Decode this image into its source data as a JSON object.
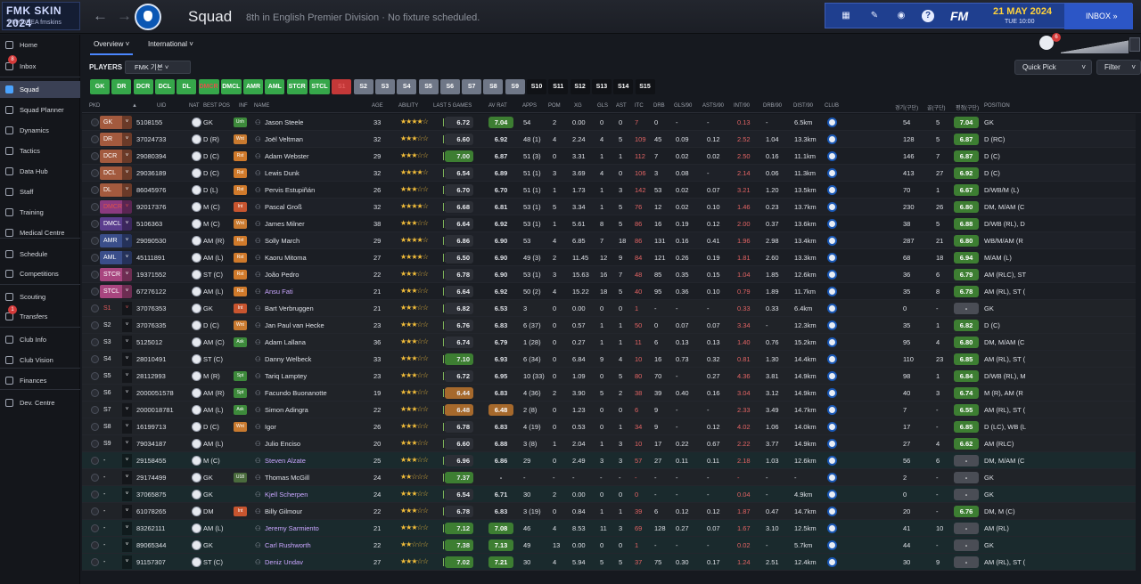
{
  "skin": {
    "title": "FMK SKIN 2024",
    "subtitle": "FMKOREA fmskins"
  },
  "header": {
    "title": "Squad",
    "subtitle": "8th in English Premier Division  ·  No fixture scheduled.",
    "fm": "FM",
    "date": "21 MAY 2024",
    "time": "TUE 10:00",
    "inbox": "INBOX"
  },
  "sidebar": [
    {
      "label": "Home",
      "icon": "home-icon"
    },
    {
      "label": "Inbox",
      "icon": "inbox-icon",
      "badge": "8"
    },
    {
      "label": "Squad",
      "icon": "squad-icon",
      "active": true
    },
    {
      "label": "Squad Planner",
      "icon": "planner-icon"
    },
    {
      "label": "Dynamics",
      "icon": "dynamics-icon"
    },
    {
      "label": "Tactics",
      "icon": "tactics-icon"
    },
    {
      "label": "Data Hub",
      "icon": "datahub-icon"
    },
    {
      "label": "Staff",
      "icon": "staff-icon"
    },
    {
      "label": "Training",
      "icon": "training-icon"
    },
    {
      "label": "Medical Centre",
      "icon": "medical-icon"
    },
    {
      "label": "Schedule",
      "icon": "schedule-icon"
    },
    {
      "label": "Competitions",
      "icon": "trophy-icon"
    },
    {
      "label": "Scouting",
      "icon": "scouting-icon"
    },
    {
      "label": "Transfers",
      "icon": "transfers-icon",
      "badge": "1"
    },
    {
      "label": "Club Info",
      "icon": "clubinfo-icon"
    },
    {
      "label": "Club Vision",
      "icon": "vision-icon"
    },
    {
      "label": "Finances",
      "icon": "finances-icon"
    },
    {
      "label": "Dev. Centre",
      "icon": "devcentre-icon"
    }
  ],
  "tabs": {
    "overview": "Overview",
    "international": "International"
  },
  "badge_count": "6",
  "players_bar": {
    "label": "PLAYERS",
    "view": "FMK 기본",
    "quick_pick": "Quick Pick",
    "filter": "Filter"
  },
  "positions": [
    "GK",
    "DR",
    "DCR",
    "DCL",
    "DL",
    "DMCR",
    "DMCL",
    "AMR",
    "AML",
    "STCR",
    "STCL",
    "S1",
    "S2",
    "S3",
    "S4",
    "S5",
    "S6",
    "S7",
    "S8",
    "S9",
    "S10",
    "S11",
    "S12",
    "S13",
    "S14",
    "S15"
  ],
  "columns": {
    "pkd": "PKD",
    "uid": "UID",
    "nat": "NAT",
    "best": "BEST POS",
    "inf": "INF",
    "name": "NAME",
    "age": "AGE",
    "ability": "ABILITY",
    "last5": "LAST 5 GAMES",
    "avrat": "AV RAT",
    "apps": "APPS",
    "pom": "POM",
    "xg": "XG",
    "gls": "GLS",
    "ast": "AST",
    "itc": "ITC",
    "drb": "DRB",
    "gls90": "GLS/90",
    "asts90": "ASTS/90",
    "int90": "INT/90",
    "drb90": "DRB/90",
    "dist90": "DIST/90",
    "club": "CLUB",
    "games": "경기(구단)",
    "goals": "골(구단)",
    "rating": "평점(구단)",
    "position": "POSITION"
  },
  "rows": [
    {
      "pos": "GK",
      "uid": "5108155",
      "best": "GK",
      "inf": "Unh",
      "name": "Jason Steele",
      "age": "33",
      "stars": "★★★★☆",
      "last5": "6.72",
      "av": "7.04",
      "apps": "54",
      "pom": "2",
      "xg": "0.00",
      "gls": "0",
      "ast": "0",
      "itc": "7",
      "drb": "0",
      "gls90": "-",
      "asts90": "-",
      "int90": "0.13",
      "drb90": "-",
      "dist": "6.5km",
      "cg": "54",
      "cgl": "5",
      "cr": "7.04",
      "cpos": "GK"
    },
    {
      "pos": "DR",
      "uid": "37024733",
      "best": "D (R)",
      "inf": "Wnt",
      "name": "Joël Veltman",
      "age": "32",
      "stars": "★★★☆☆",
      "last5": "6.60",
      "av": "6.92",
      "apps": "48 (1)",
      "pom": "4",
      "xg": "2.24",
      "gls": "4",
      "ast": "5",
      "itc": "109",
      "drb": "45",
      "gls90": "0.09",
      "asts90": "0.12",
      "int90": "2.52",
      "drb90": "1.04",
      "dist": "13.3km",
      "cg": "128",
      "cgl": "5",
      "cr": "6.87",
      "cpos": "D (RC)"
    },
    {
      "pos": "DCR",
      "uid": "29080394",
      "best": "D (C)",
      "inf": "Rst",
      "name": "Adam Webster",
      "age": "29",
      "stars": "★★★☆☆",
      "last5": "7.00",
      "av": "6.87",
      "apps": "51 (3)",
      "pom": "0",
      "xg": "3.31",
      "gls": "1",
      "ast": "1",
      "itc": "112",
      "drb": "7",
      "gls90": "0.02",
      "asts90": "0.02",
      "int90": "2.50",
      "drb90": "0.16",
      "dist": "11.1km",
      "cg": "146",
      "cgl": "7",
      "cr": "6.87",
      "cpos": "D (C)"
    },
    {
      "pos": "DCL",
      "uid": "29036189",
      "best": "D (C)",
      "inf": "Rst",
      "name": "Lewis Dunk",
      "age": "32",
      "stars": "★★★★☆",
      "last5": "6.54",
      "av": "6.89",
      "apps": "51 (1)",
      "pom": "3",
      "xg": "3.69",
      "gls": "4",
      "ast": "0",
      "itc": "106",
      "drb": "3",
      "gls90": "0.08",
      "asts90": "-",
      "int90": "2.14",
      "drb90": "0.06",
      "dist": "11.3km",
      "cg": "413",
      "cgl": "27",
      "cr": "6.92",
      "cpos": "D (C)"
    },
    {
      "pos": "DL",
      "uid": "86045976",
      "best": "D (L)",
      "inf": "Rst",
      "name": "Pervis Estupiñán",
      "age": "26",
      "stars": "★★★☆☆",
      "last5": "6.70",
      "av": "6.70",
      "apps": "51 (1)",
      "pom": "1",
      "xg": "1.73",
      "gls": "1",
      "ast": "3",
      "itc": "142",
      "drb": "53",
      "gls90": "0.02",
      "asts90": "0.07",
      "int90": "3.21",
      "drb90": "1.20",
      "dist": "13.5km",
      "cg": "70",
      "cgl": "1",
      "cr": "6.67",
      "cpos": "D/WB/M (L)"
    },
    {
      "pos": "DMCR",
      "uid": "92017376",
      "best": "M (C)",
      "inf": "Int",
      "name": "Pascal Groß",
      "age": "32",
      "stars": "★★★★☆",
      "last5": "6.68",
      "av": "6.81",
      "apps": "53 (1)",
      "pom": "5",
      "xg": "3.34",
      "gls": "1",
      "ast": "5",
      "itc": "76",
      "drb": "12",
      "gls90": "0.02",
      "asts90": "0.10",
      "int90": "1.46",
      "drb90": "0.23",
      "dist": "13.7km",
      "cg": "230",
      "cgl": "26",
      "cr": "6.80",
      "cpos": "DM, M/AM (C"
    },
    {
      "pos": "DMCL",
      "uid": "5106363",
      "best": "M (C)",
      "inf": "Wnt",
      "name": "James Milner",
      "age": "38",
      "stars": "★★★☆☆",
      "last5": "6.64",
      "av": "6.92",
      "apps": "53 (1)",
      "pom": "1",
      "xg": "5.61",
      "gls": "8",
      "ast": "5",
      "itc": "86",
      "drb": "16",
      "gls90": "0.19",
      "asts90": "0.12",
      "int90": "2.00",
      "drb90": "0.37",
      "dist": "13.6km",
      "cg": "38",
      "cgl": "5",
      "cr": "6.88",
      "cpos": "D/WB (RL), D"
    },
    {
      "pos": "AMR",
      "uid": "29090530",
      "best": "AM (R)",
      "inf": "Rst",
      "name": "Solly March",
      "age": "29",
      "stars": "★★★★☆",
      "last5": "6.86",
      "av": "6.90",
      "apps": "53",
      "pom": "4",
      "xg": "6.85",
      "gls": "7",
      "ast": "18",
      "itc": "86",
      "drb": "131",
      "gls90": "0.16",
      "asts90": "0.41",
      "int90": "1.96",
      "drb90": "2.98",
      "dist": "13.4km",
      "cg": "287",
      "cgl": "21",
      "cr": "6.80",
      "cpos": "WB/M/AM (R"
    },
    {
      "pos": "AML",
      "uid": "45111891",
      "best": "AM (L)",
      "inf": "Rst",
      "name": "Kaoru Mitoma",
      "age": "27",
      "stars": "★★★★☆",
      "last5": "6.50",
      "av": "6.90",
      "apps": "49 (3)",
      "pom": "2",
      "xg": "11.45",
      "gls": "12",
      "ast": "9",
      "itc": "84",
      "drb": "121",
      "gls90": "0.26",
      "asts90": "0.19",
      "int90": "1.81",
      "drb90": "2.60",
      "dist": "13.3km",
      "cg": "68",
      "cgl": "18",
      "cr": "6.94",
      "cpos": "M/AM (L)"
    },
    {
      "pos": "STCR",
      "uid": "19371552",
      "best": "ST (C)",
      "inf": "Rst",
      "name": "João Pedro",
      "age": "22",
      "stars": "★★★☆☆",
      "last5": "6.78",
      "av": "6.90",
      "apps": "53 (1)",
      "pom": "3",
      "xg": "15.63",
      "gls": "16",
      "ast": "7",
      "itc": "48",
      "drb": "85",
      "gls90": "0.35",
      "asts90": "0.15",
      "int90": "1.04",
      "drb90": "1.85",
      "dist": "12.6km",
      "cg": "36",
      "cgl": "6",
      "cr": "6.79",
      "cpos": "AM (RLC), ST"
    },
    {
      "pos": "STCL",
      "uid": "67276122",
      "best": "AM (L)",
      "inf": "Rst",
      "name": "Ansu Fati",
      "age": "21",
      "stars": "★★★☆☆",
      "last5": "6.64",
      "av": "6.92",
      "apps": "50 (2)",
      "pom": "4",
      "xg": "15.22",
      "gls": "18",
      "ast": "5",
      "itc": "40",
      "drb": "95",
      "gls90": "0.36",
      "asts90": "0.10",
      "int90": "0.79",
      "drb90": "1.89",
      "dist": "11.7km",
      "cg": "35",
      "cgl": "8",
      "cr": "6.78",
      "cpos": "AM (RL), ST (",
      "purple": true
    },
    {
      "pos": "S1",
      "uid": "37076353",
      "best": "GK",
      "inf": "Int",
      "name": "Bart Verbruggen",
      "age": "21",
      "stars": "★★★☆☆",
      "last5": "6.82",
      "av": "6.53",
      "apps": "3",
      "pom": "0",
      "xg": "0.00",
      "gls": "0",
      "ast": "0",
      "itc": "1",
      "drb": "-",
      "gls90": "-",
      "asts90": "-",
      "int90": "0.33",
      "drb90": "0.33",
      "dist": "6.4km",
      "cg": "0",
      "cgl": "-",
      "cr": "-",
      "cpos": "GK"
    },
    {
      "pos": "S2",
      "uid": "37076335",
      "best": "D (C)",
      "inf": "Wnt",
      "name": "Jan Paul van Hecke",
      "age": "23",
      "stars": "★★★☆☆",
      "last5": "6.76",
      "av": "6.83",
      "apps": "6 (37)",
      "pom": "0",
      "xg": "0.57",
      "gls": "1",
      "ast": "1",
      "itc": "50",
      "drb": "0",
      "gls90": "0.07",
      "asts90": "0.07",
      "int90": "3.34",
      "drb90": "-",
      "dist": "12.3km",
      "cg": "35",
      "cgl": "1",
      "cr": "6.82",
      "cpos": "D (C)"
    },
    {
      "pos": "S3",
      "uid": "5125012",
      "best": "AM (C)",
      "inf": "Ask",
      "name": "Adam Lallana",
      "age": "36",
      "stars": "★★★☆☆",
      "last5": "6.74",
      "av": "6.79",
      "apps": "1 (28)",
      "pom": "0",
      "xg": "0.27",
      "gls": "1",
      "ast": "1",
      "itc": "11",
      "drb": "6",
      "gls90": "0.13",
      "asts90": "0.13",
      "int90": "1.40",
      "drb90": "0.76",
      "dist": "15.2km",
      "cg": "95",
      "cgl": "4",
      "cr": "6.80",
      "cpos": "DM, M/AM (C"
    },
    {
      "pos": "S4",
      "uid": "28010491",
      "best": "ST (C)",
      "inf": "",
      "name": "Danny Welbeck",
      "age": "33",
      "stars": "★★★☆☆",
      "last5": "7.10",
      "av": "6.93",
      "apps": "6 (34)",
      "pom": "0",
      "xg": "6.84",
      "gls": "9",
      "ast": "4",
      "itc": "10",
      "drb": "16",
      "gls90": "0.73",
      "asts90": "0.32",
      "int90": "0.81",
      "drb90": "1.30",
      "dist": "14.4km",
      "cg": "110",
      "cgl": "23",
      "cr": "6.85",
      "cpos": "AM (RL), ST ("
    },
    {
      "pos": "S5",
      "uid": "28112993",
      "best": "M (R)",
      "inf": "Spt",
      "name": "Tariq Lamptey",
      "age": "23",
      "stars": "★★★☆☆",
      "last5": "6.72",
      "av": "6.95",
      "apps": "10 (33)",
      "pom": "0",
      "xg": "1.09",
      "gls": "0",
      "ast": "5",
      "itc": "80",
      "drb": "70",
      "gls90": "-",
      "asts90": "0.27",
      "int90": "4.36",
      "drb90": "3.81",
      "dist": "14.9km",
      "cg": "98",
      "cgl": "1",
      "cr": "6.84",
      "cpos": "D/WB (RL), M"
    },
    {
      "pos": "S6",
      "uid": "2000051578",
      "best": "AM (R)",
      "inf": "Spt",
      "name": "Facundo Buonanotte",
      "age": "19",
      "stars": "★★★☆☆",
      "last5": "6.44",
      "av": "6.83",
      "apps": "4 (36)",
      "pom": "2",
      "xg": "3.90",
      "gls": "5",
      "ast": "2",
      "itc": "38",
      "drb": "39",
      "gls90": "0.40",
      "asts90": "0.16",
      "int90": "3.04",
      "drb90": "3.12",
      "dist": "14.9km",
      "cg": "40",
      "cgl": "3",
      "cr": "6.74",
      "cpos": "M (R), AM (R"
    },
    {
      "pos": "S7",
      "uid": "2000018781",
      "best": "AM (L)",
      "inf": "Ask",
      "name": "Simon Adingra",
      "age": "22",
      "stars": "★★★☆☆",
      "last5": "6.48",
      "av": "6.48",
      "apps": "2 (8)",
      "pom": "0",
      "xg": "1.23",
      "gls": "0",
      "ast": "0",
      "itc": "6",
      "drb": "9",
      "gls90": "-",
      "asts90": "-",
      "int90": "2.33",
      "drb90": "3.49",
      "dist": "14.7km",
      "cg": "7",
      "cgl": "-",
      "cr": "6.55",
      "cpos": "AM (RL), ST ("
    },
    {
      "pos": "S8",
      "uid": "16199713",
      "best": "D (C)",
      "inf": "Wnt",
      "name": "Igor",
      "age": "26",
      "stars": "★★★☆☆",
      "last5": "6.78",
      "av": "6.83",
      "apps": "4 (19)",
      "pom": "0",
      "xg": "0.53",
      "gls": "0",
      "ast": "1",
      "itc": "34",
      "drb": "9",
      "gls90": "-",
      "asts90": "0.12",
      "int90": "4.02",
      "drb90": "1.06",
      "dist": "14.0km",
      "cg": "17",
      "cgl": "-",
      "cr": "6.85",
      "cpos": "D (LC), WB (L"
    },
    {
      "pos": "S9",
      "uid": "79034187",
      "best": "AM (L)",
      "inf": "",
      "name": "Julio Enciso",
      "age": "20",
      "stars": "★★★☆☆",
      "last5": "6.60",
      "av": "6.88",
      "apps": "3 (8)",
      "pom": "1",
      "xg": "2.04",
      "gls": "1",
      "ast": "3",
      "itc": "10",
      "drb": "17",
      "gls90": "0.22",
      "asts90": "0.67",
      "int90": "2.22",
      "drb90": "3.77",
      "dist": "14.9km",
      "cg": "27",
      "cgl": "4",
      "cr": "6.62",
      "cpos": "AM (RLC)"
    },
    {
      "pos": "-",
      "uid": "29158455",
      "best": "M (C)",
      "inf": "",
      "name": "Steven Alzate",
      "age": "25",
      "stars": "★★★☆☆",
      "last5": "6.96",
      "av": "6.86",
      "apps": "29",
      "pom": "0",
      "xg": "2.49",
      "gls": "3",
      "ast": "3",
      "itc": "57",
      "drb": "27",
      "gls90": "0.11",
      "asts90": "0.11",
      "int90": "2.18",
      "drb90": "1.03",
      "dist": "12.6km",
      "cg": "56",
      "cgl": "6",
      "cr": "-",
      "cpos": "DM, M/AM (C",
      "purple": true,
      "loan": true
    },
    {
      "pos": "-",
      "uid": "29174499",
      "best": "GK",
      "inf": "U18",
      "name": "Thomas McGill",
      "age": "24",
      "stars": "★★☆☆☆",
      "last5": "7.37",
      "av": "-",
      "apps": "-",
      "pom": "-",
      "xg": "-",
      "gls": "-",
      "ast": "-",
      "itc": "-",
      "drb": "-",
      "gls90": "-",
      "asts90": "-",
      "int90": "-",
      "drb90": "-",
      "dist": "-",
      "cg": "2",
      "cgl": "-",
      "cr": "-",
      "cpos": "GK"
    },
    {
      "pos": "-",
      "uid": "37065875",
      "best": "GK",
      "inf": "",
      "name": "Kjell Scherpen",
      "age": "24",
      "stars": "★★★☆☆",
      "last5": "6.54",
      "av": "6.71",
      "apps": "30",
      "pom": "2",
      "xg": "0.00",
      "gls": "0",
      "ast": "0",
      "itc": "0",
      "drb": "-",
      "gls90": "-",
      "asts90": "-",
      "int90": "0.04",
      "drb90": "-",
      "dist": "4.9km",
      "cg": "0",
      "cgl": "-",
      "cr": "-",
      "cpos": "GK",
      "purple": true,
      "loan": true
    },
    {
      "pos": "-",
      "uid": "61078265",
      "best": "DM",
      "inf": "Int",
      "name": "Billy Gilmour",
      "age": "22",
      "stars": "★★★☆☆",
      "last5": "6.78",
      "av": "6.83",
      "apps": "3 (19)",
      "pom": "0",
      "xg": "0.84",
      "gls": "1",
      "ast": "1",
      "itc": "39",
      "drb": "6",
      "gls90": "0.12",
      "asts90": "0.12",
      "int90": "1.87",
      "drb90": "0.47",
      "dist": "14.7km",
      "cg": "20",
      "cgl": "-",
      "cr": "6.76",
      "cpos": "DM, M (C)"
    },
    {
      "pos": "-",
      "uid": "83262111",
      "best": "AM (L)",
      "inf": "",
      "name": "Jeremy Sarmiento",
      "age": "21",
      "stars": "★★★☆☆",
      "last5": "7.12",
      "av": "7.08",
      "apps": "46",
      "pom": "4",
      "xg": "8.53",
      "gls": "11",
      "ast": "3",
      "itc": "69",
      "drb": "128",
      "gls90": "0.27",
      "asts90": "0.07",
      "int90": "1.67",
      "drb90": "3.10",
      "dist": "12.5km",
      "cg": "41",
      "cgl": "10",
      "cr": "-",
      "cpos": "AM (RL)",
      "purple": true,
      "loan": true
    },
    {
      "pos": "-",
      "uid": "89065344",
      "best": "GK",
      "inf": "",
      "name": "Carl Rushworth",
      "age": "22",
      "stars": "★★☆☆☆",
      "last5": "7.38",
      "av": "7.13",
      "apps": "49",
      "pom": "13",
      "xg": "0.00",
      "gls": "0",
      "ast": "0",
      "itc": "1",
      "drb": "-",
      "gls90": "-",
      "asts90": "-",
      "int90": "0.02",
      "drb90": "-",
      "dist": "5.7km",
      "cg": "44",
      "cgl": "-",
      "cr": "-",
      "cpos": "GK",
      "purple": true,
      "loan": true
    },
    {
      "pos": "-",
      "uid": "91157307",
      "best": "ST (C)",
      "inf": "",
      "name": "Deniz Undav",
      "age": "27",
      "stars": "★★★☆☆",
      "last5": "7.02",
      "av": "7.21",
      "apps": "30",
      "pom": "4",
      "xg": "5.94",
      "gls": "5",
      "ast": "5",
      "itc": "37",
      "drb": "75",
      "gls90": "0.30",
      "asts90": "0.17",
      "int90": "1.24",
      "drb90": "2.51",
      "dist": "12.4km",
      "cg": "30",
      "cgl": "9",
      "cr": "-",
      "cpos": "AM (RL), ST (",
      "purple": true,
      "loan": true
    }
  ]
}
